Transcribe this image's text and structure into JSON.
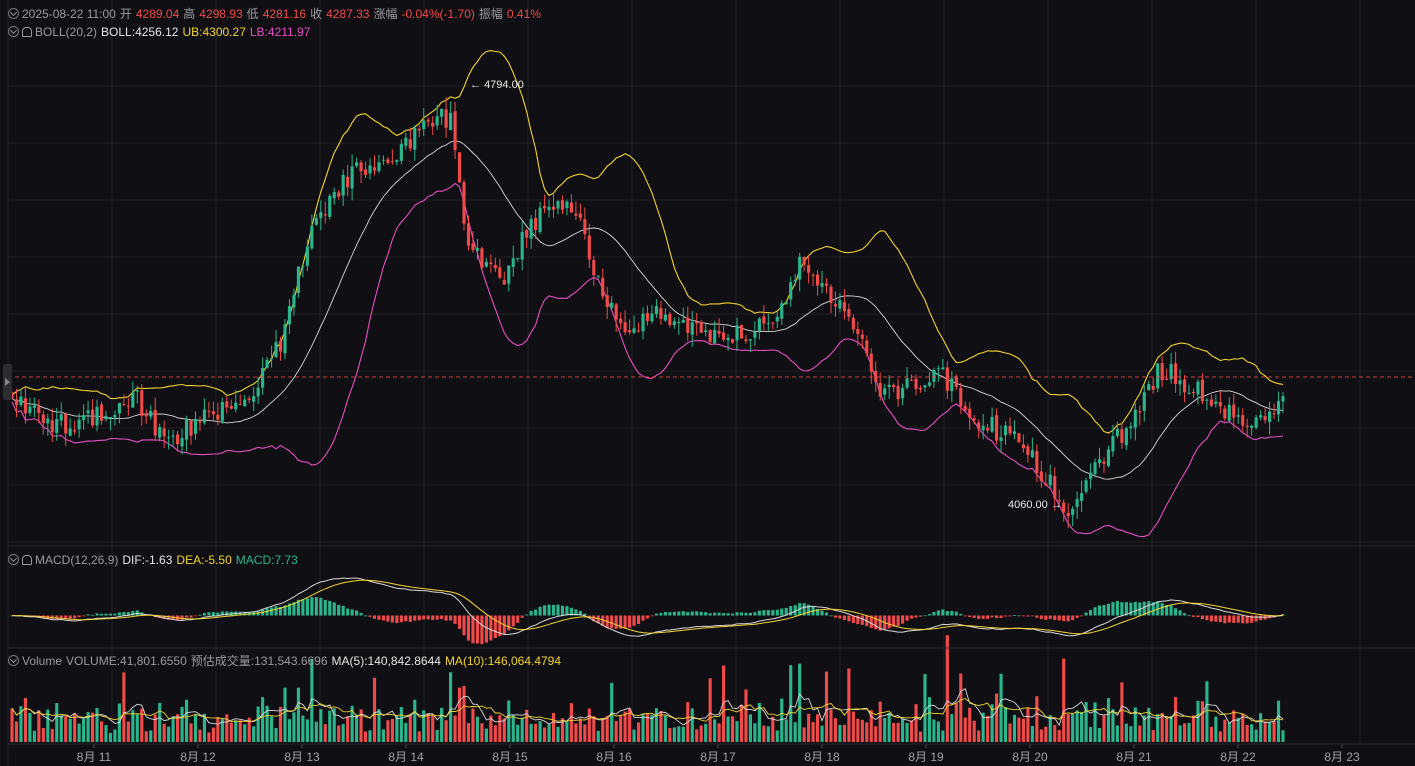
{
  "header": {
    "datetime": "2025-08-22 11:00",
    "open_label": "开",
    "open": "4289.04",
    "high_label": "高",
    "high": "4298.93",
    "low_label": "低",
    "low": "4281.16",
    "close_label": "收",
    "close": "4287.33",
    "change_label": "涨幅",
    "change": "-0.04%(-1.70)",
    "amp_label": "振幅",
    "amp": "0.41%"
  },
  "boll": {
    "name": "BOLL(20,2)",
    "mid_label": "BOLL:",
    "mid": "4256.12",
    "ub_label": "UB:",
    "ub": "4300.27",
    "lb_label": "LB:",
    "lb": "4211.97"
  },
  "macd": {
    "name": "MACD(12,26,9)",
    "dif_label": "DIF:",
    "dif": "-1.63",
    "dea_label": "DEA:",
    "dea": "-5.50",
    "macd_label": "MACD:",
    "macd": "7.73"
  },
  "volume": {
    "name": "Volume",
    "vol_label": "VOLUME:",
    "vol": "41,801.6550",
    "est_label": "预估成交量:",
    "est": "131,543.6696",
    "ma5_label": "MA(5):",
    "ma5": "140,842.8644",
    "ma10_label": "MA(10):",
    "ma10": "146,064.4794"
  },
  "annotations": {
    "high_mark": "4794.00",
    "low_mark": "4060.00"
  },
  "colors": {
    "up": "#2bb58c",
    "down": "#f04a4a",
    "ub": "#f2d430",
    "lb": "#e44fc2",
    "mid": "#d8d8d8",
    "grid": "#1f1f25",
    "current": "#f04a4a"
  },
  "chart_data": {
    "type": "candlestick",
    "title": "",
    "xlabel": "",
    "ylabel": "",
    "x_ticks": [
      "8月 11",
      "8月 12",
      "8月 13",
      "8月 14",
      "8月 15",
      "8月 16",
      "8月 17",
      "8月 18",
      "8月 19",
      "8月 20",
      "8月 21",
      "8月 22",
      "8月 23"
    ],
    "price_ylim": [
      4040,
      4900
    ],
    "annotated_high": 4794.0,
    "annotated_low": 4060.0,
    "last_close": 4287.33,
    "indicators": [
      "BOLL(20,2)",
      "MACD(12,26,9)",
      "Volume MA(5) MA(10)"
    ],
    "close_anchors": [
      [
        0,
        4300
      ],
      [
        5,
        4255
      ],
      [
        12,
        4235
      ],
      [
        20,
        4255
      ],
      [
        28,
        4280
      ],
      [
        34,
        4210
      ],
      [
        40,
        4235
      ],
      [
        48,
        4265
      ],
      [
        54,
        4300
      ],
      [
        60,
        4380
      ],
      [
        66,
        4560
      ],
      [
        72,
        4640
      ],
      [
        80,
        4690
      ],
      [
        88,
        4720
      ],
      [
        94,
        4760
      ],
      [
        98,
        4770
      ],
      [
        102,
        4540
      ],
      [
        106,
        4520
      ],
      [
        110,
        4490
      ],
      [
        114,
        4560
      ],
      [
        120,
        4610
      ],
      [
        126,
        4600
      ],
      [
        130,
        4510
      ],
      [
        134,
        4430
      ],
      [
        138,
        4390
      ],
      [
        142,
        4430
      ],
      [
        148,
        4410
      ],
      [
        154,
        4400
      ],
      [
        162,
        4395
      ],
      [
        168,
        4410
      ],
      [
        172,
        4450
      ],
      [
        176,
        4510
      ],
      [
        180,
        4480
      ],
      [
        184,
        4460
      ],
      [
        188,
        4420
      ],
      [
        192,
        4320
      ],
      [
        196,
        4290
      ],
      [
        200,
        4300
      ],
      [
        206,
        4330
      ],
      [
        210,
        4310
      ],
      [
        214,
        4250
      ],
      [
        218,
        4240
      ],
      [
        222,
        4220
      ],
      [
        226,
        4200
      ],
      [
        230,
        4160
      ],
      [
        234,
        4110
      ],
      [
        236,
        4080
      ],
      [
        240,
        4130
      ],
      [
        244,
        4190
      ],
      [
        248,
        4220
      ],
      [
        252,
        4260
      ],
      [
        256,
        4330
      ],
      [
        260,
        4325
      ],
      [
        264,
        4300
      ],
      [
        268,
        4285
      ],
      [
        272,
        4260
      ],
      [
        276,
        4235
      ],
      [
        280,
        4240
      ],
      [
        284,
        4285
      ]
    ],
    "volume_ylim": [
      0,
      350000
    ]
  }
}
